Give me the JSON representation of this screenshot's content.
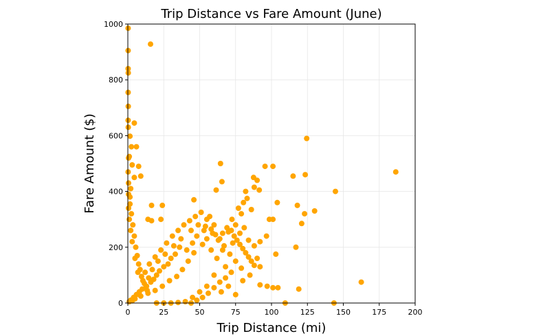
{
  "chart_data": {
    "type": "scatter",
    "title": "Trip Distance vs Fare Amount (June)",
    "xlabel": "Trip Distance (mi)",
    "ylabel": "Fare Amount ($)",
    "xlim": [
      0,
      200
    ],
    "ylim": [
      0,
      1000
    ],
    "xticks": [
      "0",
      "25",
      "50",
      "75",
      "100",
      "125",
      "150",
      "175",
      "200"
    ],
    "yticks": [
      "0",
      "200",
      "400",
      "600",
      "800",
      "1000"
    ],
    "grid": true,
    "marker_color": "#ffa500",
    "points": [
      [
        0.2,
        985
      ],
      [
        15.8,
        928
      ],
      [
        0.2,
        905
      ],
      [
        0.2,
        840
      ],
      [
        0.3,
        825
      ],
      [
        0.2,
        755
      ],
      [
        0.3,
        705
      ],
      [
        0.2,
        655
      ],
      [
        0.3,
        630
      ],
      [
        4.5,
        645
      ],
      [
        1.5,
        598
      ],
      [
        2.5,
        560
      ],
      [
        6.0,
        560
      ],
      [
        0.5,
        520
      ],
      [
        1.0,
        525
      ],
      [
        3.0,
        495
      ],
      [
        7.5,
        490
      ],
      [
        9.0,
        455
      ],
      [
        4.5,
        450
      ],
      [
        0.2,
        470
      ],
      [
        0.5,
        430
      ],
      [
        2.0,
        410
      ],
      [
        0.5,
        390
      ],
      [
        1.5,
        355
      ],
      [
        16.5,
        350
      ],
      [
        24.0,
        350
      ],
      [
        14.0,
        300
      ],
      [
        16.5,
        295
      ],
      [
        23.0,
        300
      ],
      [
        46.0,
        370
      ],
      [
        64.5,
        500
      ],
      [
        61.5,
        405
      ],
      [
        65.5,
        435
      ],
      [
        82.0,
        400
      ],
      [
        87.5,
        450
      ],
      [
        90.0,
        440
      ],
      [
        95.5,
        490
      ],
      [
        101.0,
        490
      ],
      [
        104.0,
        360
      ],
      [
        88.0,
        415
      ],
      [
        91.5,
        405
      ],
      [
        98.5,
        300
      ],
      [
        101.0,
        300
      ],
      [
        96.5,
        240
      ],
      [
        115.0,
        455
      ],
      [
        123.5,
        460
      ],
      [
        124.5,
        590
      ],
      [
        144.5,
        400
      ],
      [
        186.5,
        470
      ],
      [
        118.0,
        350
      ],
      [
        123.0,
        320
      ],
      [
        130.0,
        330
      ],
      [
        121.0,
        285
      ],
      [
        117.0,
        200
      ],
      [
        103.0,
        175
      ],
      [
        92.0,
        220
      ],
      [
        90.0,
        160
      ],
      [
        92.0,
        130
      ],
      [
        92.0,
        65
      ],
      [
        97.0,
        60
      ],
      [
        101.0,
        55
      ],
      [
        119.0,
        50
      ],
      [
        109.5,
        0
      ],
      [
        143.5,
        0
      ],
      [
        162.5,
        75
      ],
      [
        104.5,
        55
      ],
      [
        83.0,
        375
      ],
      [
        80.5,
        360
      ],
      [
        77.0,
        340
      ],
      [
        72.5,
        300
      ],
      [
        86.0,
        335
      ],
      [
        79.0,
        320
      ],
      [
        75.0,
        280
      ],
      [
        78.0,
        250
      ],
      [
        81.0,
        270
      ],
      [
        70.0,
        255
      ],
      [
        84.0,
        225
      ],
      [
        88.0,
        205
      ],
      [
        66.0,
        190
      ],
      [
        73.0,
        215
      ],
      [
        57.0,
        310
      ],
      [
        60.0,
        280
      ],
      [
        53.0,
        260
      ],
      [
        55.0,
        230
      ],
      [
        48.0,
        240
      ],
      [
        45.0,
        215
      ],
      [
        41.0,
        190
      ],
      [
        36.0,
        200
      ],
      [
        33.0,
        175
      ],
      [
        30.0,
        160
      ],
      [
        28.0,
        140
      ],
      [
        25.0,
        130
      ],
      [
        22.0,
        115
      ],
      [
        20.0,
        100
      ],
      [
        18.0,
        85
      ],
      [
        16.0,
        75
      ],
      [
        13.0,
        60
      ],
      [
        10.0,
        50
      ],
      [
        8.0,
        40
      ],
      [
        6.0,
        30
      ],
      [
        4.0,
        20
      ],
      [
        2.0,
        10
      ],
      [
        1.0,
        5
      ],
      [
        12.0,
        110
      ],
      [
        15.0,
        140
      ],
      [
        19.0,
        165
      ],
      [
        23.0,
        190
      ],
      [
        27.0,
        215
      ],
      [
        31.0,
        240
      ],
      [
        35.0,
        260
      ],
      [
        39.0,
        280
      ],
      [
        43.0,
        295
      ],
      [
        47.0,
        310
      ],
      [
        51.0,
        325
      ],
      [
        55.0,
        300
      ],
      [
        59.0,
        250
      ],
      [
        63.0,
        225
      ],
      [
        67.0,
        205
      ],
      [
        71.0,
        175
      ],
      [
        75.0,
        150
      ],
      [
        79.0,
        125
      ],
      [
        60.0,
        100
      ],
      [
        55.0,
        60
      ],
      [
        50.0,
        40
      ],
      [
        45.0,
        20
      ],
      [
        40.0,
        5
      ],
      [
        35.0,
        2
      ],
      [
        30.0,
        0
      ],
      [
        25.0,
        0
      ],
      [
        20.0,
        0
      ],
      [
        70.0,
        60
      ],
      [
        65.0,
        40
      ],
      [
        75.0,
        30
      ],
      [
        80.0,
        80
      ],
      [
        85.0,
        100
      ],
      [
        68.0,
        130
      ],
      [
        62.0,
        160
      ],
      [
        58.0,
        190
      ],
      [
        52.0,
        210
      ],
      [
        46.0,
        180
      ],
      [
        42.0,
        150
      ],
      [
        38.0,
        120
      ],
      [
        34.0,
        95
      ],
      [
        29.0,
        80
      ],
      [
        24.0,
        60
      ],
      [
        19.0,
        45
      ],
      [
        14.0,
        35
      ],
      [
        9.0,
        25
      ],
      [
        5.0,
        15
      ],
      [
        3.0,
        8
      ],
      [
        7.0,
        110
      ],
      [
        5.0,
        160
      ],
      [
        3.0,
        220
      ],
      [
        2.0,
        260
      ],
      [
        1.0,
        300
      ],
      [
        0.5,
        340
      ],
      [
        1.5,
        380
      ],
      [
        2.5,
        320
      ],
      [
        3.5,
        280
      ],
      [
        4.5,
        240
      ],
      [
        5.5,
        200
      ],
      [
        6.5,
        170
      ],
      [
        7.5,
        140
      ],
      [
        8.5,
        120
      ],
      [
        9.5,
        95
      ],
      [
        10.5,
        80
      ],
      [
        11.5,
        70
      ],
      [
        12.5,
        55
      ],
      [
        13.5,
        45
      ],
      [
        14.5,
        90
      ],
      [
        17.0,
        120
      ],
      [
        21.0,
        150
      ],
      [
        26.0,
        175
      ],
      [
        32.0,
        205
      ],
      [
        37.0,
        230
      ],
      [
        44.0,
        260
      ],
      [
        49.0,
        280
      ],
      [
        54.0,
        275
      ],
      [
        58.0,
        265
      ],
      [
        61.0,
        245
      ],
      [
        64.0,
        230
      ],
      [
        66.0,
        250
      ],
      [
        69.0,
        270
      ],
      [
        72.0,
        260
      ],
      [
        74.0,
        240
      ],
      [
        76.0,
        225
      ],
      [
        78.0,
        210
      ],
      [
        80.0,
        195
      ],
      [
        82.0,
        180
      ],
      [
        84.0,
        165
      ],
      [
        86.0,
        150
      ],
      [
        88.0,
        135
      ],
      [
        72.0,
        110
      ],
      [
        68.0,
        90
      ],
      [
        64.0,
        75
      ],
      [
        60.0,
        55
      ],
      [
        56.0,
        35
      ],
      [
        52.0,
        20
      ],
      [
        48.0,
        10
      ],
      [
        44.0,
        0
      ]
    ]
  }
}
